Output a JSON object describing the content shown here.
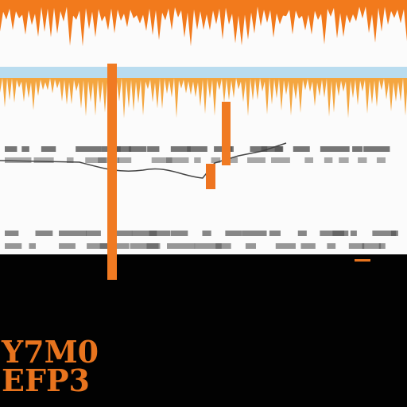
{
  "footer": {
    "line1": "Y7M0",
    "line2": "EFP3"
  }
}
